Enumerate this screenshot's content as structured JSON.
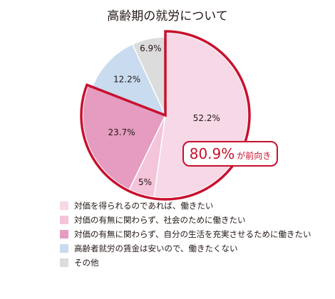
{
  "chart_data": {
    "type": "pie",
    "title": "高齢期の就労について",
    "slices": [
      {
        "label": "対価を得られるのであれば、働きたい",
        "value": 52.2,
        "display": "52.2%",
        "color": "#f6d8e6"
      },
      {
        "label": "対価の有無に関わらず、社会のために働きたい",
        "value": 5.0,
        "display": "5%",
        "color": "#f3c4da"
      },
      {
        "label": "対価の有無に関わらず、自分の生活を充実させるために働きたい",
        "value": 23.7,
        "display": "23.7%",
        "color": "#e59cc0"
      },
      {
        "label": "高齢者就労の賃金は安いので、働きたくない",
        "value": 12.2,
        "display": "12.2%",
        "color": "#c8dbef"
      },
      {
        "label": "その他",
        "value": 6.9,
        "display": "6.9%",
        "color": "#dcdcdc"
      }
    ],
    "callout": {
      "value": "80.9%",
      "text": "が前向き"
    },
    "highlight_color": "#c8102e",
    "legend_placement": "bottom"
  }
}
